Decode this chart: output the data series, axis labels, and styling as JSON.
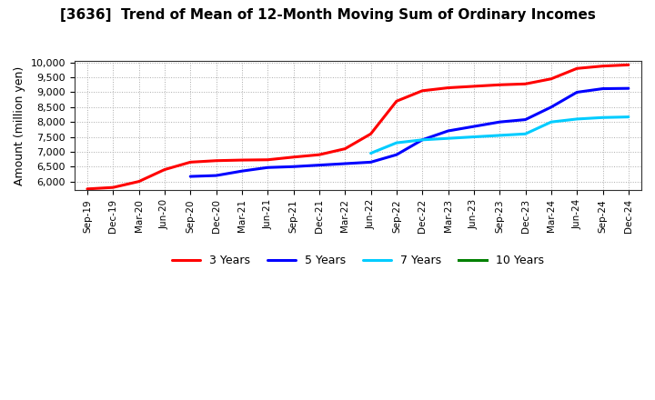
{
  "title": "[3636]  Trend of Mean of 12-Month Moving Sum of Ordinary Incomes",
  "ylabel": "Amount (million yen)",
  "background_color": "#ffffff",
  "grid_color": "#aaaaaa",
  "x_labels": [
    "Sep-19",
    "Dec-19",
    "Mar-20",
    "Jun-20",
    "Sep-20",
    "Dec-20",
    "Mar-21",
    "Jun-21",
    "Sep-21",
    "Dec-21",
    "Mar-22",
    "Jun-22",
    "Sep-22",
    "Dec-22",
    "Mar-23",
    "Jun-23",
    "Sep-23",
    "Dec-23",
    "Mar-24",
    "Jun-24",
    "Sep-24",
    "Dec-24"
  ],
  "series": {
    "3 Years": {
      "color": "#ff0000",
      "data_x": [
        0,
        1,
        2,
        3,
        4,
        5,
        6,
        7,
        8,
        9,
        10,
        11,
        12,
        13,
        14,
        15,
        16,
        17,
        18,
        19,
        20,
        21
      ],
      "data_y": [
        5750,
        5800,
        6000,
        6400,
        6650,
        6700,
        6720,
        6730,
        6820,
        6900,
        7100,
        7600,
        8700,
        9050,
        9150,
        9200,
        9250,
        9280,
        9450,
        9800,
        9880,
        9920
      ]
    },
    "5 Years": {
      "color": "#0000ff",
      "data_x": [
        4,
        5,
        6,
        7,
        8,
        9,
        10,
        11,
        12,
        13,
        14,
        15,
        16,
        17,
        18,
        19,
        20,
        21
      ],
      "data_y": [
        6170,
        6200,
        6350,
        6470,
        6500,
        6550,
        6600,
        6650,
        6900,
        7400,
        7700,
        7850,
        8000,
        8080,
        8500,
        9000,
        9120,
        9130
      ]
    },
    "7 Years": {
      "color": "#00ccff",
      "data_x": [
        11,
        12,
        13,
        14,
        15,
        16,
        17,
        18,
        19,
        20,
        21
      ],
      "data_y": [
        6950,
        7300,
        7400,
        7450,
        7500,
        7550,
        7600,
        8000,
        8100,
        8150,
        8170
      ]
    },
    "10 Years": {
      "color": "#008000",
      "data_x": [],
      "data_y": []
    }
  },
  "ylim_min": 5700,
  "ylim_max": 10050,
  "yticks": [
    6000,
    6500,
    7000,
    7500,
    8000,
    8500,
    9000,
    9500,
    10000
  ],
  "legend_order": [
    "3 Years",
    "5 Years",
    "7 Years",
    "10 Years"
  ]
}
